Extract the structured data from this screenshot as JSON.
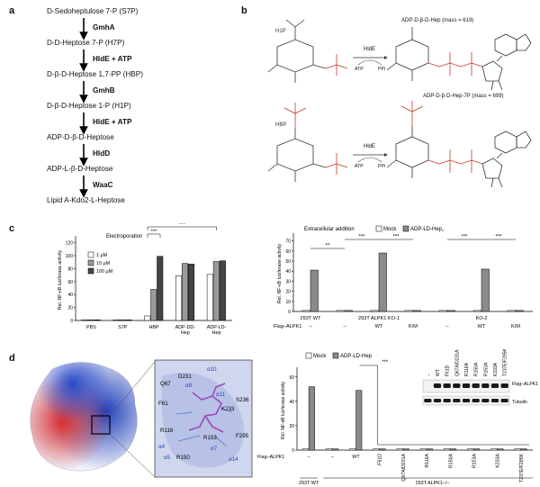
{
  "panel_a": {
    "label": "a",
    "steps": [
      "D-Sedoheptulose 7-P (S7P)",
      "D-D-Heptose 7-P (H7P)",
      "D-β-D-Heptose 1,7-PP (HBP)",
      "D-β-D-Heptose 1-P (H1P)",
      "ADP-D-β-D-Heptose",
      "ADP-L-β-D-Heptose",
      "Lipid A-Kdo2-L-Heptose"
    ],
    "enzymes": [
      "GmhA",
      "HldE + ATP",
      "GmhB",
      "HldE + ATP",
      "HldD",
      "WaaC"
    ]
  },
  "panel_b": {
    "label": "b",
    "reaction1": {
      "substrate": "H1P",
      "enzyme": "HldE",
      "cofactor_in": "ATP",
      "cofactor_out": "PPi",
      "product": "ADP-D-β-D-Hep (mass = 619)"
    },
    "reaction2": {
      "substrate": "HBP",
      "enzyme": "HldE",
      "cofactor_in": "ATP",
      "cofactor_out": "PPi",
      "product": "ADP-D-β-D-Hep-7P (mass = 699)"
    }
  },
  "panel_c": {
    "label": "c",
    "chart_data": [
      {
        "type": "bar",
        "annotation": "Electroporation",
        "ylabel": "Rel. NF-κB luciferase activity",
        "ylim": [
          0,
          125
        ],
        "yticks": [
          0,
          20,
          40,
          60,
          80,
          100,
          120
        ],
        "categories": [
          "PBS",
          "S7P",
          "HBP",
          "ADP-DD-Hep",
          "ADP-LD-Hep"
        ],
        "series": [
          {
            "name": "1 μM",
            "color": "#ffffff",
            "values": [
              1,
              1,
              7,
              69,
              71
            ]
          },
          {
            "name": "10 μM",
            "color": "#9a9a9a",
            "values": [
              1,
              1,
              48,
              88,
              91
            ]
          },
          {
            "name": "100 μM",
            "color": "#444444",
            "values": [
              1,
              1,
              99,
              87,
              92
            ]
          }
        ],
        "significance": [
          {
            "label": "***"
          },
          {
            "label": "***"
          }
        ]
      },
      {
        "type": "bar",
        "annotation": "Extracellular addition",
        "ylabel": "Rel. NF-κB luciferase activity",
        "ylim": [
          0,
          75
        ],
        "yticks": [
          0,
          10,
          20,
          30,
          40,
          50,
          60,
          70
        ],
        "series": [
          {
            "name": "Mock",
            "color": "#ffffff"
          },
          {
            "name": "ADP-LD-Hep",
            "color": "#8a8a8a"
          }
        ],
        "legend_suffix": "7",
        "groups": [
          {
            "flag": "–",
            "mock": 1,
            "hep": 41
          },
          {
            "flag": "–",
            "mock": 1,
            "hep": 1
          },
          {
            "flag": "WT",
            "mock": 1,
            "hep": 58
          },
          {
            "flag": "K/M",
            "mock": 1,
            "hep": 1
          },
          {
            "flag": "–",
            "mock": 1,
            "hep": 1
          },
          {
            "flag": "WT",
            "mock": 1,
            "hep": 42
          },
          {
            "flag": "K/M",
            "mock": 1,
            "hep": 1
          }
        ],
        "cell_labels": [
          "293T WT",
          "293T ALPK1 KO-1",
          "KO-2"
        ],
        "flag_row_label": "Flag–ALPK1",
        "significance": [
          "**",
          "***",
          "***",
          "***",
          "***"
        ]
      }
    ]
  },
  "panel_d": {
    "label": "d",
    "residues": [
      "D231",
      "Q67",
      "α9",
      "α10",
      "α11",
      "F61",
      "S236",
      "K233",
      "R116",
      "α4",
      "α5",
      "R150",
      "R153",
      "α7",
      "α14",
      "F295"
    ],
    "chart_data": {
      "type": "bar",
      "ylabel": "Rel. NF-κB luciferase activity",
      "ylim": [
        0,
        65
      ],
      "yticks": [
        0,
        20,
        40,
        60
      ],
      "series": [
        {
          "name": "Mock",
          "color": "#ffffff"
        },
        {
          "name": "ADP-LD-Hep",
          "color": "#8a8a8a"
        }
      ],
      "groups": [
        {
          "flag": "–",
          "mock": 1,
          "hep": 52
        },
        {
          "flag": "–",
          "mock": 1,
          "hep": 1
        },
        {
          "flag": "WT",
          "mock": 1,
          "hep": 49
        },
        {
          "flag": "F61D",
          "mock": 1,
          "hep": 1
        },
        {
          "flag": "Q67A/D231A",
          "mock": 1,
          "hep": 1
        },
        {
          "flag": "R116A",
          "mock": 1,
          "hep": 1
        },
        {
          "flag": "R150A",
          "mock": 1,
          "hep": 1
        },
        {
          "flag": "R153A",
          "mock": 1,
          "hep": 1
        },
        {
          "flag": "K233A",
          "mock": 1,
          "hep": 1
        },
        {
          "flag": "T237E/F295K",
          "mock": 1,
          "hep": 1
        }
      ],
      "significance": "***",
      "flag_row_label": "Flag–ALPK1",
      "cell_labels": [
        "293T WT",
        "293T ALPK1−/−"
      ]
    },
    "blot": {
      "lanes": [
        "–",
        "WT",
        "F61D",
        "Q67A/D231A",
        "R116A",
        "R150A",
        "R153A",
        "K233A",
        "T237E/F295K"
      ],
      "rows": [
        "Flag–ALPK1",
        "Tubulin"
      ]
    }
  }
}
